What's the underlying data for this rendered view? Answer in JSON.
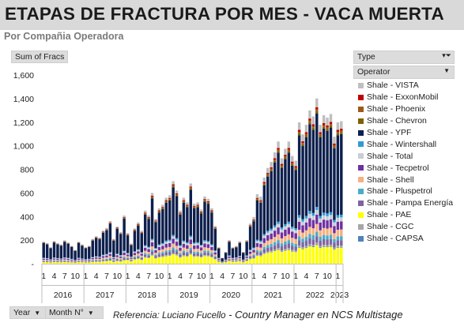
{
  "header": {
    "title": "ETAPAS DE FRACTURA POR MES -  VACA MUERTA",
    "subtitle": "Por Compañia Operadora"
  },
  "pivot": {
    "value_field": "Sum of Fracs",
    "filter_field": "Type",
    "legend_field": "Operator",
    "axis_field_year": "Year",
    "axis_field_month": "Month N°"
  },
  "reference": {
    "author": "Referencia:  Luciano Fucello",
    "role": " - Country Manager en NCS Multistage"
  },
  "legend": [
    {
      "label": "Shale - VISTA",
      "color": "#bfbfbf"
    },
    {
      "label": "Shale - ExxonMobil",
      "color": "#c00000"
    },
    {
      "label": "Shale - Phoenix",
      "color": "#9c5a1a"
    },
    {
      "label": "Shale - Chevron",
      "color": "#7f6000"
    },
    {
      "label": "Shale - YPF",
      "color": "#0d1f4d"
    },
    {
      "label": "Shale - Wintershall",
      "color": "#2e9bd6"
    },
    {
      "label": "Shale - Total",
      "color": "#c9ced6"
    },
    {
      "label": "Shale - Tecpetrol",
      "color": "#7030a0"
    },
    {
      "label": "Shale - Shell",
      "color": "#f4b183"
    },
    {
      "label": "Shale - Pluspetrol",
      "color": "#4bacc6"
    },
    {
      "label": "Shale - Pampa Energía",
      "color": "#8064a2"
    },
    {
      "label": "Shale - PAE",
      "color": "#ffff00"
    },
    {
      "label": "Shale - CGC",
      "color": "#a6a6a6"
    },
    {
      "label": "Shale - CAPSA",
      "color": "#4f81bd"
    }
  ],
  "chart_data": {
    "type": "bar",
    "stacked": true,
    "ylim": [
      0,
      1600
    ],
    "yticks": [
      0,
      200,
      400,
      600,
      800,
      1000,
      1200,
      1400,
      1600
    ],
    "ytick_labels": [
      "-",
      "200",
      "400",
      "600",
      "800",
      "1,000",
      "1,200",
      "1,400",
      "1,600"
    ],
    "grid": false,
    "legend_position": "right",
    "years": [
      {
        "label": "2016",
        "months": 12
      },
      {
        "label": "2017",
        "months": 12
      },
      {
        "label": "2018",
        "months": 12
      },
      {
        "label": "2019",
        "months": 12
      },
      {
        "label": "2020",
        "months": 12
      },
      {
        "label": "2021",
        "months": 12
      },
      {
        "label": "2022",
        "months": 12
      },
      {
        "label": "2023",
        "months": 2
      }
    ],
    "month_tick_labels": [
      "1",
      "4",
      "7",
      "10"
    ],
    "month_tick_positions": [
      1,
      4,
      7,
      10
    ],
    "monthly_totals": [
      160,
      150,
      120,
      165,
      150,
      140,
      170,
      155,
      130,
      100,
      160,
      140,
      120,
      130,
      180,
      200,
      190,
      240,
      260,
      310,
      180,
      270,
      230,
      350,
      260,
      170,
      300,
      350,
      280,
      450,
      410,
      600,
      380,
      470,
      500,
      560,
      580,
      700,
      620,
      450,
      560,
      520,
      680,
      510,
      520,
      460,
      570,
      550,
      470,
      320,
      140,
      50,
      100,
      200,
      140,
      150,
      190,
      100,
      200,
      340,
      390,
      580,
      560,
      720,
      800,
      850,
      930,
      1020,
      880,
      960,
      1020,
      900,
      860,
      1180,
      1080,
      1160,
      1280,
      1230,
      1380,
      1160,
      1240,
      1220,
      1250,
      1060,
      1180,
      1190
    ],
    "series_shares": {
      "Shale - YPF": 0.6,
      "Shale - PAE": 0.12,
      "Shale - Tecpetrol": 0.06,
      "Shale - Pampa Energía": 0.04,
      "Shale - Pluspetrol": 0.03,
      "Shale - Shell": 0.05,
      "Shale - Total": 0.03,
      "Shale - Wintershall": 0.02,
      "Shale - Chevron": 0.015,
      "Shale - Phoenix": 0.01,
      "Shale - ExxonMobil": 0.015,
      "Shale - VISTA": 0.04,
      "Shale - CGC": 0.01,
      "Shale - CAPSA": 0.005
    }
  }
}
